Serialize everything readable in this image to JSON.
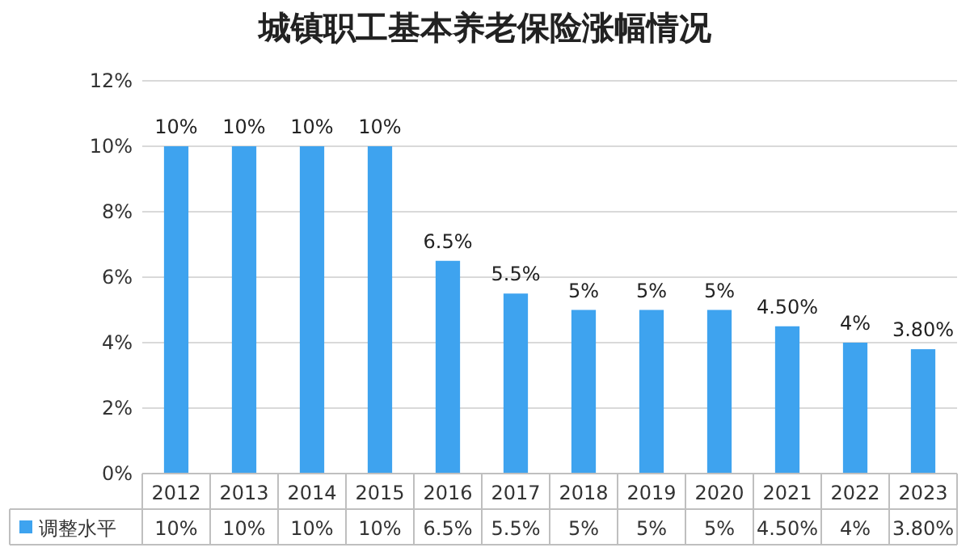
{
  "chart_data": {
    "type": "bar",
    "title": "城镇职工基本养老保险涨幅情况",
    "categories": [
      "2012",
      "2013",
      "2014",
      "2015",
      "2016",
      "2017",
      "2018",
      "2019",
      "2020",
      "2021",
      "2022",
      "2023"
    ],
    "series": [
      {
        "name": "调整水平",
        "color": "#3ea3ef",
        "values": [
          10,
          10,
          10,
          10,
          6.5,
          5.5,
          5,
          5,
          5,
          4.5,
          4,
          3.8
        ],
        "value_labels": [
          "10%",
          "10%",
          "10%",
          "10%",
          "6.5%",
          "5.5%",
          "5%",
          "5%",
          "5%",
          "4.50%",
          "4%",
          "3.80%"
        ]
      }
    ],
    "ylim": [
      0,
      12
    ],
    "yticks": [
      {
        "value": 0,
        "label": "0%"
      },
      {
        "value": 2,
        "label": "2%"
      },
      {
        "value": 4,
        "label": "4%"
      },
      {
        "value": 6,
        "label": "6%"
      },
      {
        "value": 8,
        "label": "8%"
      },
      {
        "value": 10,
        "label": "10%"
      },
      {
        "value": 12,
        "label": "12%"
      }
    ],
    "grid": "y",
    "legend": "bottom"
  }
}
